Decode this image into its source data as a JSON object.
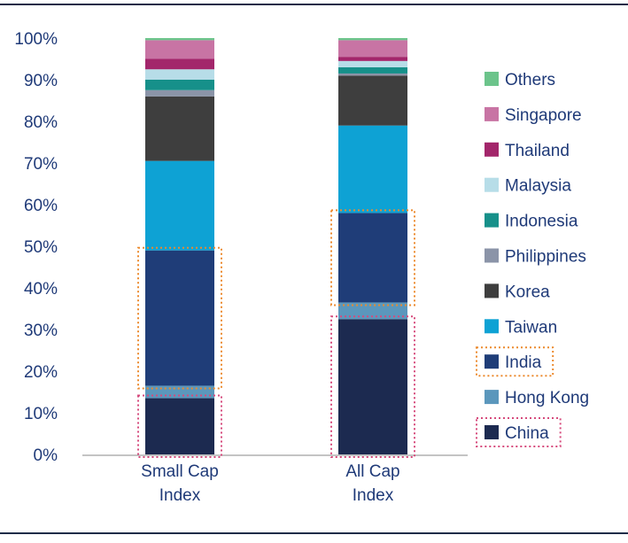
{
  "chart_data": {
    "type": "bar",
    "stacked": true,
    "categories": [
      "Small Cap\nIndex",
      "All Cap\nIndex"
    ],
    "ylim": [
      0,
      100
    ],
    "yticks": [
      0,
      10,
      20,
      30,
      40,
      50,
      60,
      70,
      80,
      90,
      100
    ],
    "ytick_suffix": "%",
    "series": [
      {
        "name": "China",
        "color": "#1c2a50",
        "values": [
          13.5,
          32.5
        ]
      },
      {
        "name": "Hong Kong",
        "color": "#5b97bc",
        "values": [
          3.0,
          4.0
        ]
      },
      {
        "name": "India",
        "color": "#1f3d78",
        "values": [
          32.5,
          21.5
        ]
      },
      {
        "name": "Taiwan",
        "color": "#0ea2d4",
        "values": [
          21.5,
          21.0
        ]
      },
      {
        "name": "Korea",
        "color": "#3e3e3e",
        "values": [
          15.5,
          12.0
        ]
      },
      {
        "name": "Philippines",
        "color": "#8b94a8",
        "values": [
          1.5,
          0.5
        ]
      },
      {
        "name": "Indonesia",
        "color": "#16908a",
        "values": [
          2.5,
          1.5
        ]
      },
      {
        "name": "Malaysia",
        "color": "#b7dde8",
        "values": [
          2.5,
          1.5
        ]
      },
      {
        "name": "Thailand",
        "color": "#a3266b",
        "values": [
          2.5,
          1.0
        ]
      },
      {
        "name": "Singapore",
        "color": "#c874a4",
        "values": [
          4.5,
          4.0
        ]
      },
      {
        "name": "Others",
        "color": "#6cc48b",
        "values": [
          0.5,
          0.5
        ]
      }
    ],
    "highlights": [
      {
        "series": "China",
        "color": "#d64a7c"
      },
      {
        "series": "India",
        "color": "#ec8a2e"
      }
    ],
    "legend_position": "right",
    "legend_order": [
      "Others",
      "Singapore",
      "Thailand",
      "Malaysia",
      "Indonesia",
      "Philippines",
      "Korea",
      "Taiwan",
      "India",
      "Hong Kong",
      "China"
    ]
  }
}
